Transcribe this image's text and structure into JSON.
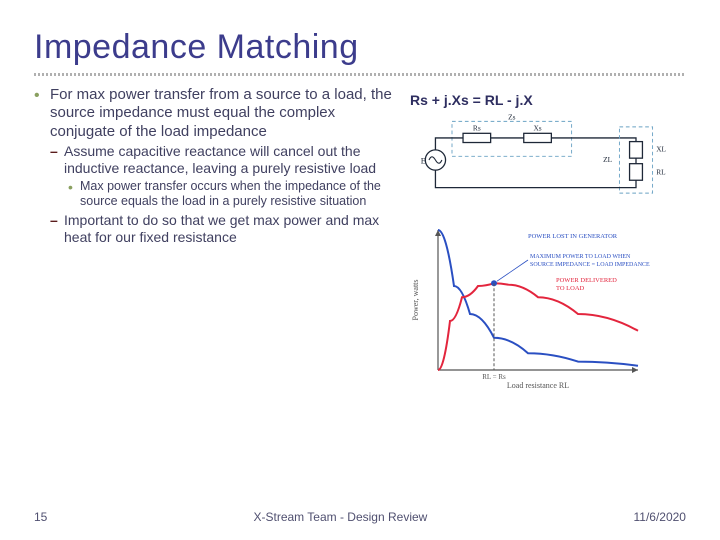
{
  "title": "Impedance Matching",
  "equation": "Rs + j.Xs = RL - j.X",
  "bullets": {
    "main": "For max power transfer from a source to a load, the source impedance must equal the complex conjugate of the load impedance",
    "sub1": "Assume capacitive reactance will cancel out the inductive reactance, leaving a purely resistive load",
    "subsub1": "Max power transfer occurs when the impedance of the source equals the load in a purely resistive situation",
    "sub2": "Important to do so that we get max power and max heat for our fixed resistance"
  },
  "circuit": {
    "labels": {
      "source": "E",
      "zs": "Zs",
      "rs": "Rs",
      "xs": "Xs",
      "zl": "ZL",
      "xl": "XL",
      "rl": "RL"
    },
    "colors": {
      "wire": "#1e2838",
      "text": "#1e2838",
      "box_stroke": "#6aa2c4",
      "box_dash": "4,3"
    }
  },
  "chart": {
    "blue": {
      "color": "#2a4fc2",
      "width": 2
    },
    "red": {
      "color": "#e3253d",
      "width": 2
    },
    "marker_color": "#2a4fc2",
    "axis_color": "#555",
    "xlabel": "Load resistance RL",
    "ylabel": "Power, watts",
    "annot1": {
      "text": "POWER LOST IN GENERATOR",
      "color": "#2a4fc2"
    },
    "annot2": {
      "text": "MAXIMUM POWER TO LOAD WHEN SOURCE IMPEDANCE = LOAD IMPEDANCE",
      "color": "#2a4fc2"
    },
    "annot3": {
      "text": "POWER DELIVERED TO LOAD",
      "color": "#e3253d"
    },
    "tick": "RL = Rs",
    "blue_points": [
      [
        0,
        100
      ],
      [
        8,
        60
      ],
      [
        16,
        40
      ],
      [
        28,
        23
      ],
      [
        45,
        12
      ],
      [
        70,
        6
      ],
      [
        100,
        3
      ]
    ],
    "red_points": [
      [
        0,
        0
      ],
      [
        6,
        35
      ],
      [
        12,
        52
      ],
      [
        20,
        60
      ],
      [
        28,
        62
      ],
      [
        35,
        61
      ],
      [
        50,
        52
      ],
      [
        70,
        40
      ],
      [
        100,
        28
      ]
    ]
  },
  "footer": {
    "page": "15",
    "center": "X-Stream Team - Design Review",
    "date": "11/6/2020"
  },
  "colors": {
    "title": "#3c3c8c",
    "body": "#404060",
    "subdash": "#5a1c1c"
  }
}
